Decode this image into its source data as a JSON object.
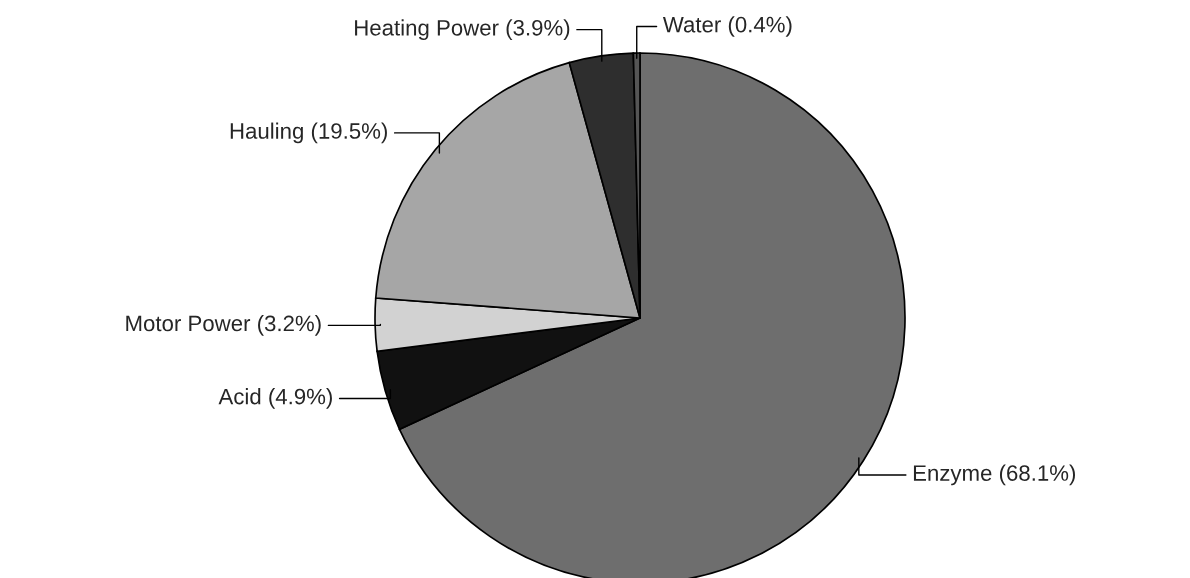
{
  "chart_data": {
    "type": "pie",
    "categories": [
      "Enzyme (68.1%)",
      "Acid (4.9%)",
      "Motor Power (3.2%)",
      "Hauling (19.5%)",
      "Heating Power (3.9%)",
      "Water (0.4%)"
    ],
    "values": [
      68.1,
      4.9,
      3.2,
      19.5,
      3.9,
      0.4
    ],
    "colors": [
      "#6e6e6e",
      "#111111",
      "#d2d2d2",
      "#a6a6a6",
      "#2e2e2e",
      "#555555"
    ]
  }
}
